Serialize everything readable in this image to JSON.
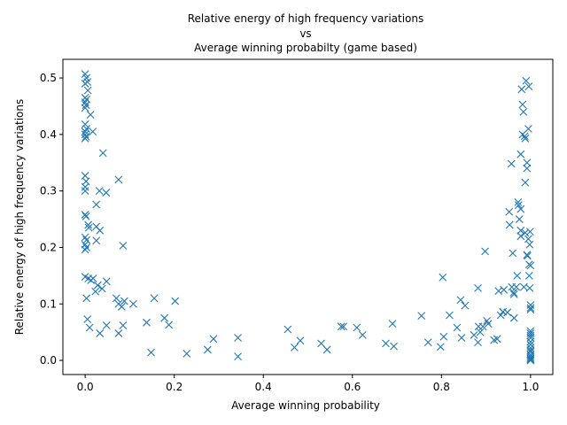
{
  "chart_data": {
    "type": "scatter",
    "title_lines": [
      "Relative energy of high frequency variations",
      "vs",
      "Average winning probabilty (game based)"
    ],
    "xlabel": "Average winning probability",
    "ylabel": "Relative energy of high frequency variations",
    "xlim": [
      -0.05,
      1.05
    ],
    "ylim": [
      -0.025,
      0.533
    ],
    "xticks": [
      0.0,
      0.2,
      0.4,
      0.6,
      0.8,
      1.0
    ],
    "xtick_labels": [
      "0.0",
      "0.2",
      "0.4",
      "0.6",
      "0.8",
      "1.0"
    ],
    "yticks": [
      0.0,
      0.1,
      0.2,
      0.3,
      0.4,
      0.5
    ],
    "ytick_labels": [
      "0.0",
      "0.1",
      "0.2",
      "0.3",
      "0.4",
      "0.5"
    ],
    "marker": "x",
    "color": "#1f77b4",
    "grid": false,
    "points": [
      [
        0.0,
        0.507
      ],
      [
        0.003,
        0.5
      ],
      [
        0.005,
        0.493
      ],
      [
        0.0,
        0.49
      ],
      [
        0.006,
        0.478
      ],
      [
        0.0,
        0.465
      ],
      [
        0.003,
        0.462
      ],
      [
        0.0,
        0.457
      ],
      [
        0.002,
        0.452
      ],
      [
        0.0,
        0.447
      ],
      [
        0.012,
        0.435
      ],
      [
        0.0,
        0.418
      ],
      [
        0.003,
        0.41
      ],
      [
        0.0,
        0.405
      ],
      [
        0.017,
        0.405
      ],
      [
        0.0,
        0.4
      ],
      [
        0.002,
        0.396
      ],
      [
        0.0,
        0.393
      ],
      [
        0.04,
        0.367
      ],
      [
        0.0,
        0.327
      ],
      [
        0.075,
        0.32
      ],
      [
        0.002,
        0.317
      ],
      [
        0.0,
        0.307
      ],
      [
        0.032,
        0.3
      ],
      [
        0.0,
        0.3
      ],
      [
        0.047,
        0.297
      ],
      [
        0.025,
        0.276
      ],
      [
        0.0,
        0.258
      ],
      [
        0.002,
        0.255
      ],
      [
        0.007,
        0.24
      ],
      [
        0.025,
        0.237
      ],
      [
        0.008,
        0.235
      ],
      [
        0.033,
        0.23
      ],
      [
        0.0,
        0.218
      ],
      [
        0.003,
        0.213
      ],
      [
        0.025,
        0.212
      ],
      [
        0.0,
        0.205
      ],
      [
        0.003,
        0.2
      ],
      [
        0.0,
        0.196
      ],
      [
        0.085,
        0.203
      ],
      [
        0.0,
        0.148
      ],
      [
        0.007,
        0.145
      ],
      [
        0.018,
        0.145
      ],
      [
        0.013,
        0.142
      ],
      [
        0.048,
        0.14
      ],
      [
        0.028,
        0.133
      ],
      [
        0.038,
        0.127
      ],
      [
        0.023,
        0.122
      ],
      [
        0.003,
        0.11
      ],
      [
        0.07,
        0.11
      ],
      [
        0.155,
        0.11
      ],
      [
        0.088,
        0.105
      ],
      [
        0.202,
        0.105
      ],
      [
        0.108,
        0.1
      ],
      [
        0.075,
        0.1
      ],
      [
        0.082,
        0.095
      ],
      [
        0.178,
        0.075
      ],
      [
        0.005,
        0.073
      ],
      [
        0.138,
        0.067
      ],
      [
        0.188,
        0.063
      ],
      [
        0.048,
        0.062
      ],
      [
        0.085,
        0.062
      ],
      [
        0.01,
        0.058
      ],
      [
        0.075,
        0.048
      ],
      [
        0.033,
        0.048
      ],
      [
        0.288,
        0.038
      ],
      [
        0.343,
        0.04
      ],
      [
        0.275,
        0.019
      ],
      [
        0.148,
        0.014
      ],
      [
        0.228,
        0.012
      ],
      [
        0.343,
        0.007
      ],
      [
        0.455,
        0.055
      ],
      [
        0.483,
        0.035
      ],
      [
        0.47,
        0.023
      ],
      [
        0.53,
        0.03
      ],
      [
        0.543,
        0.019
      ],
      [
        0.575,
        0.06
      ],
      [
        0.58,
        0.06
      ],
      [
        0.61,
        0.058
      ],
      [
        0.623,
        0.045
      ],
      [
        0.675,
        0.03
      ],
      [
        0.69,
        0.065
      ],
      [
        0.693,
        0.025
      ],
      [
        0.755,
        0.079
      ],
      [
        0.77,
        0.032
      ],
      [
        0.798,
        0.024
      ],
      [
        0.803,
        0.147
      ],
      [
        0.805,
        0.042
      ],
      [
        0.818,
        0.08
      ],
      [
        0.835,
        0.058
      ],
      [
        0.843,
        0.107
      ],
      [
        0.845,
        0.04
      ],
      [
        0.853,
        0.097
      ],
      [
        0.873,
        0.045
      ],
      [
        0.882,
        0.128
      ],
      [
        0.883,
        0.06
      ],
      [
        0.882,
        0.032
      ],
      [
        0.887,
        0.05
      ],
      [
        0.893,
        0.06
      ],
      [
        0.898,
        0.193
      ],
      [
        0.902,
        0.07
      ],
      [
        0.905,
        0.065
      ],
      [
        0.918,
        0.036
      ],
      [
        0.925,
        0.038
      ],
      [
        0.928,
        0.123
      ],
      [
        0.933,
        0.08
      ],
      [
        0.938,
        0.086
      ],
      [
        0.94,
        0.125
      ],
      [
        0.948,
        0.085
      ],
      [
        0.952,
        0.263
      ],
      [
        0.953,
        0.24
      ],
      [
        0.957,
        0.348
      ],
      [
        0.958,
        0.13
      ],
      [
        0.96,
        0.19
      ],
      [
        0.962,
        0.12
      ],
      [
        0.963,
        0.117
      ],
      [
        0.963,
        0.075
      ],
      [
        0.968,
        0.13
      ],
      [
        0.97,
        0.15
      ],
      [
        0.972,
        0.28
      ],
      [
        0.973,
        0.275
      ],
      [
        0.975,
        0.25
      ],
      [
        0.978,
        0.365
      ],
      [
        0.978,
        0.268
      ],
      [
        0.978,
        0.23
      ],
      [
        0.978,
        0.22
      ],
      [
        0.98,
        0.48
      ],
      [
        0.982,
        0.453
      ],
      [
        0.982,
        0.4
      ],
      [
        0.984,
        0.44
      ],
      [
        0.985,
        0.13
      ],
      [
        0.987,
        0.397
      ],
      [
        0.988,
        0.393
      ],
      [
        0.988,
        0.315
      ],
      [
        0.988,
        0.226
      ],
      [
        0.99,
        0.495
      ],
      [
        0.992,
        0.35
      ],
      [
        0.992,
        0.34
      ],
      [
        0.992,
        0.187
      ],
      [
        0.993,
        0.185
      ],
      [
        0.995,
        0.41
      ],
      [
        0.995,
        0.215
      ],
      [
        0.996,
        0.485
      ],
      [
        0.997,
        0.17
      ],
      [
        0.997,
        0.15
      ],
      [
        0.998,
        0.128
      ],
      [
        0.998,
        0.205
      ],
      [
        0.999,
        0.228
      ],
      [
        1.0,
        0.168
      ],
      [
        1.0,
        0.098
      ],
      [
        1.0,
        0.093
      ],
      [
        1.0,
        0.09
      ],
      [
        1.0,
        0.052
      ],
      [
        1.0,
        0.048
      ],
      [
        1.0,
        0.044
      ],
      [
        1.0,
        0.04
      ],
      [
        1.0,
        0.033
      ],
      [
        1.0,
        0.028
      ],
      [
        1.0,
        0.022
      ],
      [
        1.0,
        0.018
      ],
      [
        1.0,
        0.015
      ],
      [
        1.0,
        0.01
      ],
      [
        1.0,
        0.007
      ],
      [
        1.0,
        0.004
      ],
      [
        1.0,
        0.002
      ],
      [
        1.0,
        0.0
      ]
    ]
  }
}
